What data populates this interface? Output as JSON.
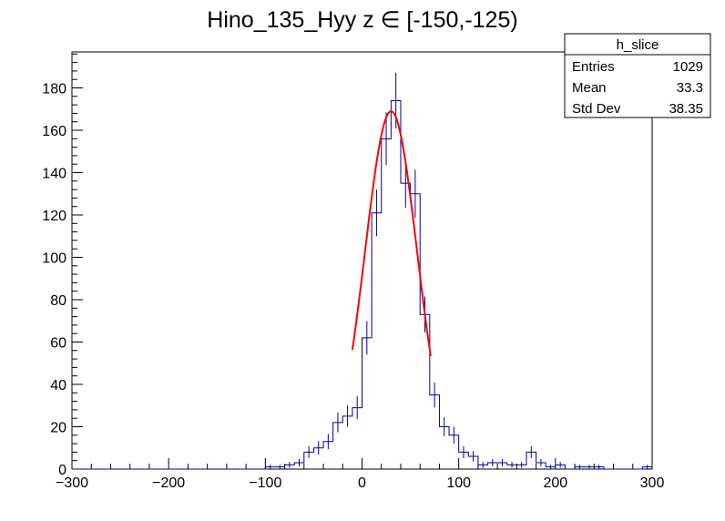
{
  "chart_data": {
    "type": "histogram",
    "title": "Hino_135_Hyy z  ∈ [-150,-125)",
    "xlabel": "",
    "ylabel": "",
    "xlim": [
      -300,
      300
    ],
    "ylim": [
      0,
      197
    ],
    "x_ticks": [
      -300,
      -200,
      -100,
      0,
      100,
      200,
      300
    ],
    "y_ticks": [
      0,
      20,
      40,
      60,
      80,
      100,
      120,
      140,
      160,
      180
    ],
    "grid": false,
    "bin_width": 10,
    "bins": [
      {
        "x": -100,
        "y": 1
      },
      {
        "x": -90,
        "y": 1
      },
      {
        "x": -80,
        "y": 2
      },
      {
        "x": -70,
        "y": 3
      },
      {
        "x": -60,
        "y": 8
      },
      {
        "x": -50,
        "y": 10
      },
      {
        "x": -40,
        "y": 13
      },
      {
        "x": -30,
        "y": 22
      },
      {
        "x": -20,
        "y": 25
      },
      {
        "x": -10,
        "y": 29
      },
      {
        "x": 0,
        "y": 62
      },
      {
        "x": 10,
        "y": 121
      },
      {
        "x": 20,
        "y": 156
      },
      {
        "x": 30,
        "y": 174
      },
      {
        "x": 40,
        "y": 135
      },
      {
        "x": 50,
        "y": 130
      },
      {
        "x": 60,
        "y": 73
      },
      {
        "x": 70,
        "y": 35
      },
      {
        "x": 80,
        "y": 20
      },
      {
        "x": 90,
        "y": 16
      },
      {
        "x": 100,
        "y": 8
      },
      {
        "x": 110,
        "y": 6
      },
      {
        "x": 120,
        "y": 2
      },
      {
        "x": 130,
        "y": 3
      },
      {
        "x": 140,
        "y": 3
      },
      {
        "x": 150,
        "y": 2
      },
      {
        "x": 160,
        "y": 2
      },
      {
        "x": 170,
        "y": 8
      },
      {
        "x": 180,
        "y": 3
      },
      {
        "x": 190,
        "y": 1
      },
      {
        "x": 200,
        "y": 2
      },
      {
        "x": 210,
        "y": 0
      },
      {
        "x": 220,
        "y": 1
      },
      {
        "x": 230,
        "y": 1
      },
      {
        "x": 240,
        "y": 1
      },
      {
        "x": 290,
        "y": 1
      }
    ],
    "fit": {
      "name": "",
      "color": "#ff0000",
      "function": "gaussian",
      "amplitude": 169,
      "mean": 30,
      "sigma": 27,
      "x_range": [
        -10,
        71
      ]
    },
    "histogram_color": "#000099",
    "stats_box": {
      "title": "h_slice",
      "position": "top-right",
      "rows": [
        {
          "label": "Entries",
          "value": "1029"
        },
        {
          "label": "Mean",
          "value": "33.3"
        },
        {
          "label": "Std Dev",
          "value": "38.35"
        }
      ]
    }
  }
}
